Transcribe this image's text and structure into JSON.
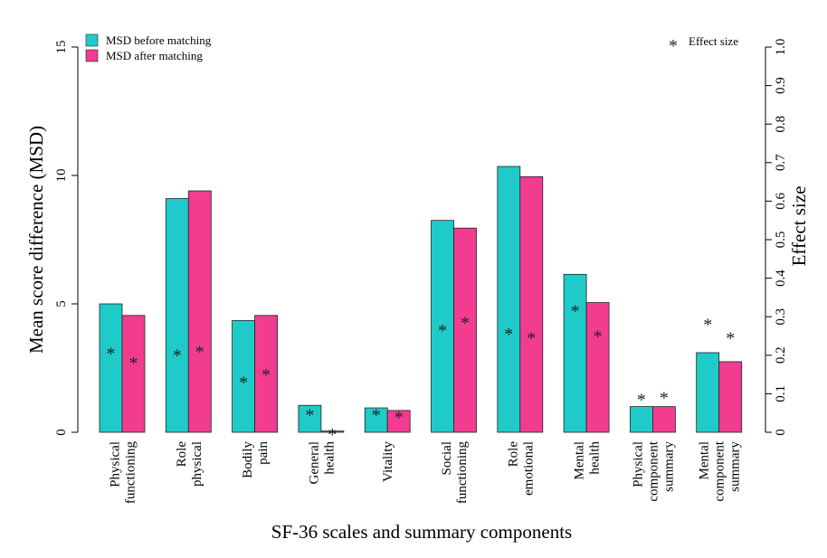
{
  "chart_data": {
    "type": "bar",
    "xlabel": "SF-36 scales and summary components",
    "ylabel": "Mean score difference (MSD)",
    "y2label": "Effect size",
    "ylim": [
      0,
      15
    ],
    "y2lim": [
      0,
      1.0
    ],
    "yticks": [
      "0",
      "5",
      "10",
      "15"
    ],
    "y2ticks": [
      "0",
      "0.1",
      "0.2",
      "0.3",
      "0.4",
      "0.5",
      "0.6",
      "0.7",
      "0.8",
      "0.9",
      "1.0"
    ],
    "categories": [
      [
        "Physical",
        "functioning"
      ],
      [
        "Role",
        "physical"
      ],
      [
        "Bodily",
        "pain"
      ],
      [
        "General",
        "health"
      ],
      [
        "Vitality"
      ],
      [
        "Social",
        "functioning"
      ],
      [
        "Role",
        "emotional"
      ],
      [
        "Mental",
        "health"
      ],
      [
        "Physical",
        "component",
        "summary"
      ],
      [
        "Mental",
        "component",
        "summary"
      ]
    ],
    "series": [
      {
        "name": "MSD before matching",
        "color": "#1ecbc8",
        "values": [
          5.0,
          9.1,
          4.35,
          1.05,
          0.95,
          8.25,
          10.35,
          6.15,
          1.0,
          3.1
        ],
        "effect_size": [
          0.21,
          0.205,
          0.135,
          0.05,
          0.05,
          0.27,
          0.26,
          0.32,
          0.09,
          0.285
        ]
      },
      {
        "name": "MSD after matching",
        "color": "#f23c90",
        "values": [
          4.55,
          9.4,
          4.55,
          0.05,
          0.85,
          7.95,
          9.95,
          5.05,
          1.0,
          2.75
        ],
        "effect_size": [
          0.185,
          0.215,
          0.155,
          0.0,
          0.045,
          0.29,
          0.25,
          0.255,
          0.095,
          0.25
        ]
      }
    ],
    "effect_legend": "Effect size",
    "effect_marker": "*"
  }
}
